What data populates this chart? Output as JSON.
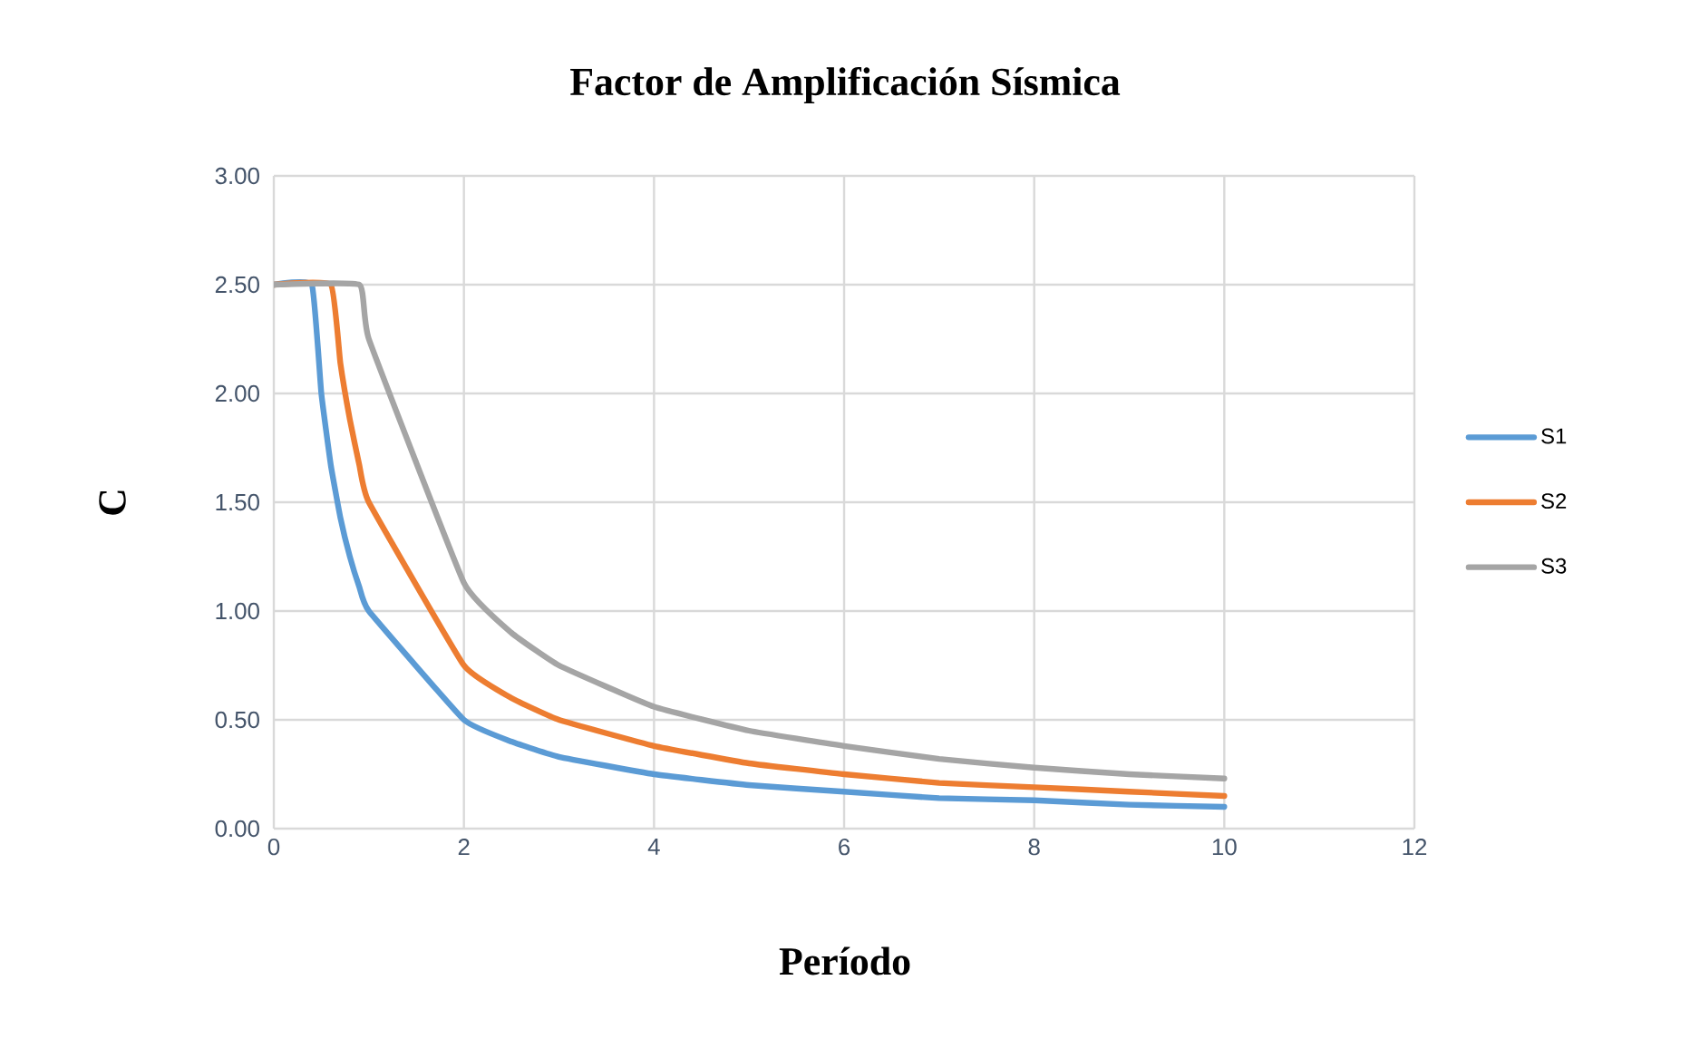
{
  "chart_data": {
    "type": "line",
    "title": "Factor de Amplificación Sísmica",
    "xlabel": "Período",
    "ylabel": "C",
    "xlim": [
      0,
      12
    ],
    "ylim": [
      0,
      3
    ],
    "xticks": [
      0,
      2,
      4,
      6,
      8,
      10,
      12
    ],
    "yticks": [
      {
        "value": 0,
        "label": "0.00"
      },
      {
        "value": 0.5,
        "label": "0.50"
      },
      {
        "value": 1,
        "label": "1.00"
      },
      {
        "value": 1.5,
        "label": "1.50"
      },
      {
        "value": 2,
        "label": "2.00"
      },
      {
        "value": 2.5,
        "label": "2.50"
      },
      {
        "value": 3,
        "label": "3.00"
      }
    ],
    "grid": true,
    "legend": "right",
    "series": [
      {
        "name": "S1",
        "color": "#5b9bd5",
        "x": [
          0,
          0.4,
          0.5,
          0.6,
          0.7,
          0.8,
          0.9,
          1,
          2,
          2.5,
          3,
          4,
          5,
          6,
          7,
          8,
          9,
          10
        ],
        "values": [
          2.5,
          2.5,
          2.0,
          1.67,
          1.43,
          1.25,
          1.11,
          1.0,
          0.5,
          0.4,
          0.33,
          0.25,
          0.2,
          0.17,
          0.14,
          0.13,
          0.11,
          0.1
        ]
      },
      {
        "name": "S2",
        "color": "#ed7d31",
        "x": [
          0,
          0.6,
          0.7,
          0.8,
          0.9,
          1,
          2,
          2.5,
          3,
          4,
          5,
          6,
          7,
          8,
          9,
          10
        ],
        "values": [
          2.5,
          2.5,
          2.14,
          1.88,
          1.67,
          1.5,
          0.75,
          0.6,
          0.5,
          0.38,
          0.3,
          0.25,
          0.21,
          0.19,
          0.17,
          0.15
        ]
      },
      {
        "name": "S3",
        "color": "#a5a5a5",
        "x": [
          0,
          0.9,
          1,
          2,
          2.5,
          3,
          4,
          5,
          6,
          7,
          8,
          9,
          10
        ],
        "values": [
          2.5,
          2.5,
          2.25,
          1.13,
          0.9,
          0.75,
          0.56,
          0.45,
          0.38,
          0.32,
          0.28,
          0.25,
          0.23
        ]
      }
    ]
  }
}
